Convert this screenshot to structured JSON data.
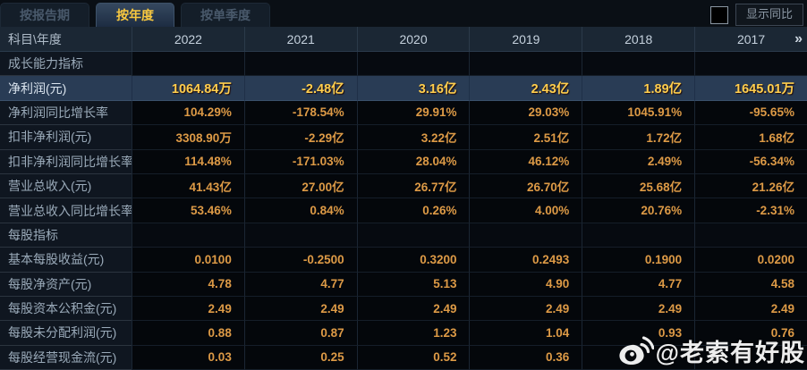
{
  "tabs": [
    {
      "label": "按报告期",
      "active": false
    },
    {
      "label": "按年度",
      "active": true
    },
    {
      "label": "按单季度",
      "active": false
    }
  ],
  "controls": {
    "show_yoy_label": "显示同比",
    "checkbox_checked": false
  },
  "table": {
    "corner_header": "科目\\年度",
    "year_columns": [
      "2022",
      "2021",
      "2020",
      "2019",
      "2018",
      "2017"
    ],
    "more_years_icon": "»",
    "rows": [
      {
        "type": "section",
        "label": "成长能力指标",
        "values": [
          "",
          "",
          "",
          "",
          "",
          ""
        ]
      },
      {
        "type": "highlight",
        "label": "净利润(元)",
        "values": [
          "1064.84万",
          "-2.48亿",
          "3.16亿",
          "2.43亿",
          "1.89亿",
          "1645.01万"
        ]
      },
      {
        "type": "normal",
        "label": "净利润同比增长率",
        "values": [
          "104.29%",
          "-178.54%",
          "29.91%",
          "29.03%",
          "1045.91%",
          "-95.65%"
        ]
      },
      {
        "type": "normal",
        "label": "扣非净利润(元)",
        "values": [
          "3308.90万",
          "-2.29亿",
          "3.22亿",
          "2.51亿",
          "1.72亿",
          "1.68亿"
        ]
      },
      {
        "type": "normal",
        "label": "扣非净利润同比增长率",
        "values": [
          "114.48%",
          "-171.03%",
          "28.04%",
          "46.12%",
          "2.49%",
          "-56.34%"
        ]
      },
      {
        "type": "normal",
        "label": "营业总收入(元)",
        "values": [
          "41.43亿",
          "27.00亿",
          "26.77亿",
          "26.70亿",
          "25.68亿",
          "21.26亿"
        ]
      },
      {
        "type": "normal",
        "label": "营业总收入同比增长率",
        "values": [
          "53.46%",
          "0.84%",
          "0.26%",
          "4.00%",
          "20.76%",
          "-2.31%"
        ]
      },
      {
        "type": "section",
        "label": "每股指标",
        "values": [
          "",
          "",
          "",
          "",
          "",
          ""
        ]
      },
      {
        "type": "normal",
        "label": "基本每股收益(元)",
        "values": [
          "0.0100",
          "-0.2500",
          "0.3200",
          "0.2493",
          "0.1900",
          "0.0200"
        ]
      },
      {
        "type": "normal",
        "label": "每股净资产(元)",
        "values": [
          "4.78",
          "4.77",
          "5.13",
          "4.90",
          "4.77",
          "4.58"
        ]
      },
      {
        "type": "normal",
        "label": "每股资本公积金(元)",
        "values": [
          "2.49",
          "2.49",
          "2.49",
          "2.49",
          "2.49",
          "2.49"
        ]
      },
      {
        "type": "normal",
        "label": "每股未分配利润(元)",
        "values": [
          "0.88",
          "0.87",
          "1.23",
          "1.04",
          "0.93",
          "0.76"
        ]
      },
      {
        "type": "normal",
        "label": "每股经营现金流(元)",
        "values": [
          "0.03",
          "0.25",
          "0.52",
          "0.36",
          "",
          ""
        ]
      }
    ]
  },
  "watermark": {
    "handle": "@老索有好股",
    "icon": "weibo-icon"
  },
  "colors": {
    "accent_gold": "#f8c840",
    "value_orange": "#dd9a46",
    "highlight_value_gold": "#ffce4d",
    "highlight_row_bg": "#293c55",
    "header_bg": "#1b2734",
    "label_col_bg": "#0f1620",
    "cell_bg": "#04070b"
  }
}
